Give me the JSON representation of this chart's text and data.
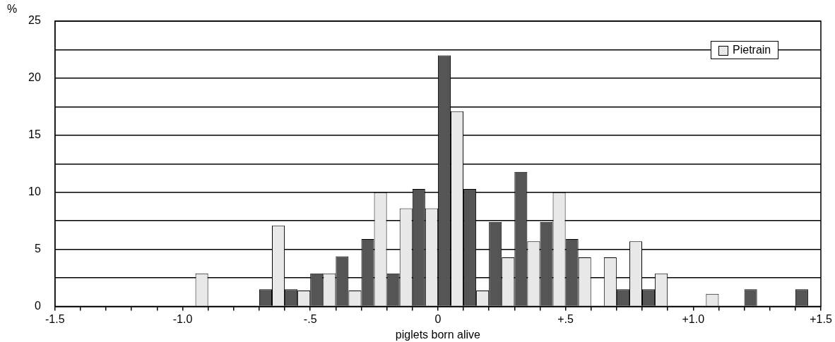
{
  "chart_data": {
    "type": "histogram",
    "xlabel": "piglets born alive",
    "ylabel": "%",
    "bins": [
      -1.5,
      -1.4,
      -1.3,
      -1.2,
      -1.1,
      -1.0,
      -0.9,
      -0.8,
      -0.7,
      -0.6,
      -0.5,
      -0.4,
      -0.3,
      -0.2,
      -0.1,
      0,
      0.1,
      0.2,
      0.3,
      0.4,
      0.5,
      0.6,
      0.7,
      0.8,
      0.9,
      1.0,
      1.1,
      1.2,
      1.3,
      1.4,
      1.5
    ],
    "series": [
      {
        "color": "#555555",
        "values": [
          0,
          0,
          0,
          0,
          0,
          0,
          0,
          0,
          1.5,
          1.5,
          2.9,
          4.4,
          5.9,
          2.9,
          10.3,
          22,
          10.3,
          7.4,
          11.8,
          7.4,
          5.9,
          0,
          1.5,
          1.5,
          0,
          0,
          0,
          1.5,
          0,
          1.5
        ]
      },
      {
        "name": "Pietrain",
        "color": "#e8e8e8",
        "values": [
          0,
          0,
          0,
          0,
          0,
          2.9,
          0,
          0,
          7.1,
          1.4,
          2.9,
          1.4,
          10,
          8.6,
          8.6,
          17.1,
          1.4,
          4.3,
          5.7,
          10,
          4.3,
          4.3,
          5.7,
          2.9,
          0,
          1.1,
          0,
          0,
          0,
          0
        ]
      }
    ],
    "xlim": [
      -1.5,
      1.5
    ],
    "xticks": [
      {
        "value": -1.5,
        "label": "-1.5"
      },
      {
        "value": -1.4,
        "label": null
      },
      {
        "value": -1.3,
        "label": null
      },
      {
        "value": -1.2,
        "label": null
      },
      {
        "value": -1.1,
        "label": null
      },
      {
        "value": -1.0,
        "label": "-1.0"
      },
      {
        "value": -0.9,
        "label": null
      },
      {
        "value": -0.8,
        "label": null
      },
      {
        "value": -0.7,
        "label": null
      },
      {
        "value": -0.6,
        "label": null
      },
      {
        "value": -0.5,
        "label": "-.5"
      },
      {
        "value": -0.4,
        "label": null
      },
      {
        "value": -0.3,
        "label": null
      },
      {
        "value": -0.2,
        "label": null
      },
      {
        "value": -0.1,
        "label": null
      },
      {
        "value": 0,
        "label": "0"
      },
      {
        "value": 0.1,
        "label": null
      },
      {
        "value": 0.2,
        "label": null
      },
      {
        "value": 0.3,
        "label": null
      },
      {
        "value": 0.4,
        "label": null
      },
      {
        "value": 0.5,
        "label": "+.5"
      },
      {
        "value": 0.6,
        "label": null
      },
      {
        "value": 0.7,
        "label": null
      },
      {
        "value": 0.8,
        "label": null
      },
      {
        "value": 0.9,
        "label": null
      },
      {
        "value": 1.0,
        "label": "+1.0"
      },
      {
        "value": 1.1,
        "label": null
      },
      {
        "value": 1.2,
        "label": null
      },
      {
        "value": 1.3,
        "label": null
      },
      {
        "value": 1.4,
        "label": null
      },
      {
        "value": 1.5,
        "label": "+1.5"
      }
    ],
    "ylim": [
      0,
      25
    ],
    "yticks": [
      0,
      {
        "value": 2.5,
        "label": null
      },
      5,
      {
        "value": 7.5,
        "label": null
      },
      10,
      {
        "value": 12.5,
        "label": null
      },
      15,
      {
        "value": 17.5,
        "label": null
      },
      20,
      {
        "value": 22.5,
        "label": null
      },
      25
    ],
    "grid": "y",
    "legend": "top right"
  }
}
